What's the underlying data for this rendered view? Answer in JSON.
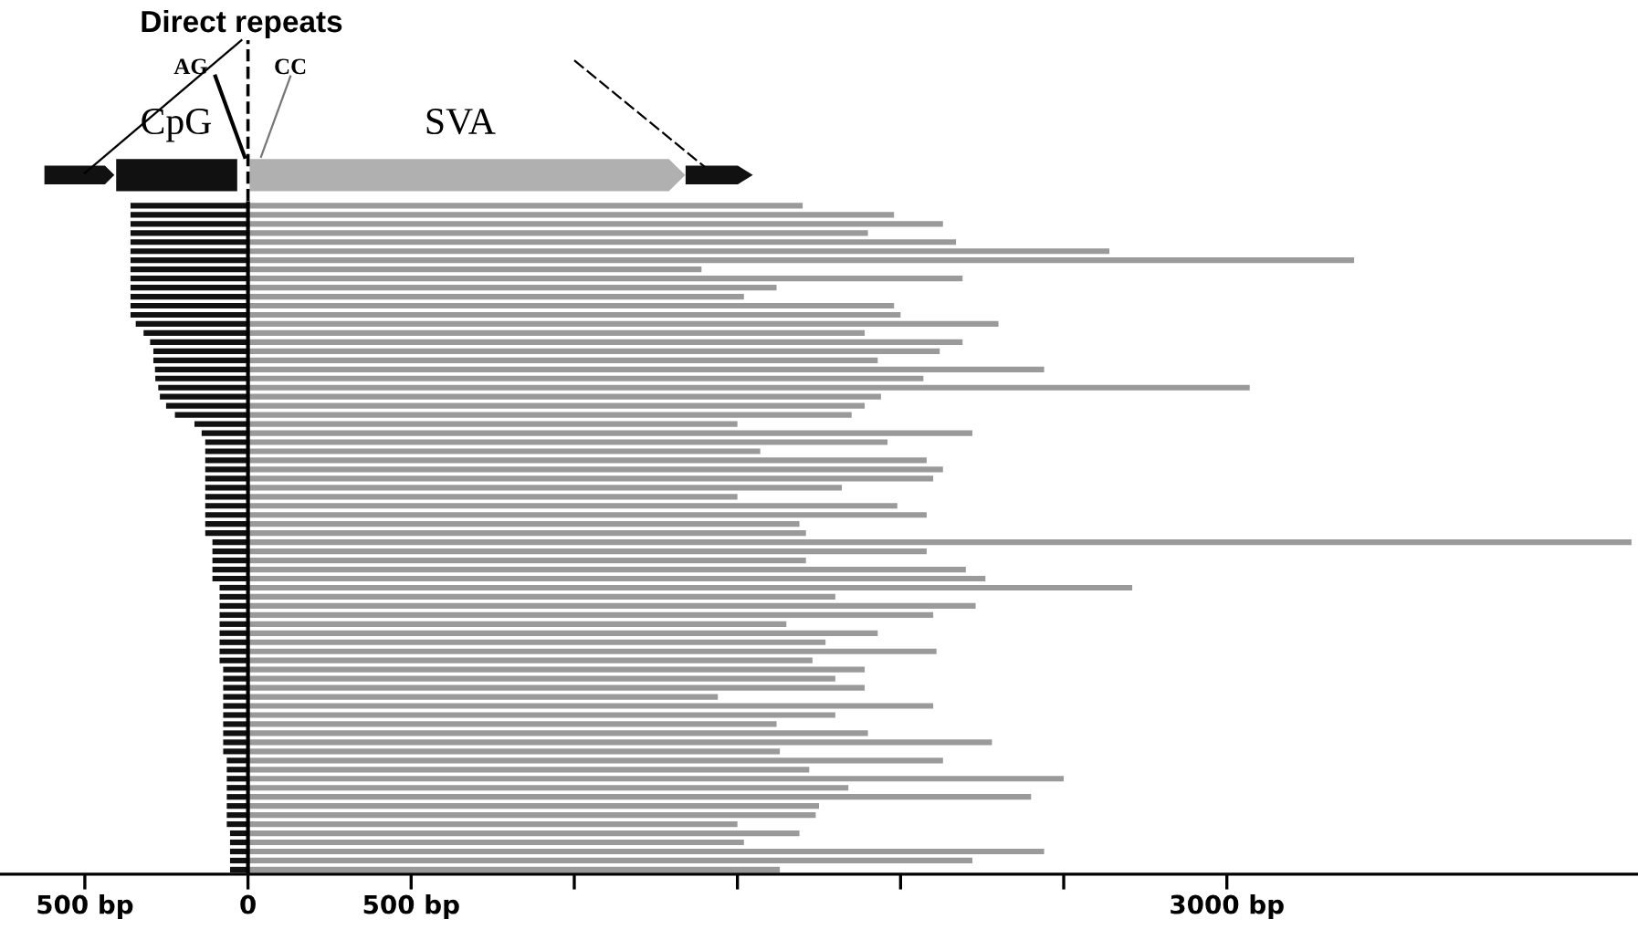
{
  "chart_data": {
    "type": "bar",
    "orientation": "horizontal",
    "stacked": true,
    "categories": [
      null,
      null,
      null,
      null,
      null,
      null,
      null,
      null,
      null,
      null,
      null,
      null,
      null,
      null,
      null,
      null,
      null,
      null,
      null,
      null,
      null,
      null,
      null,
      null,
      null,
      null,
      null,
      null,
      null,
      null,
      null,
      null,
      null,
      null,
      null,
      null,
      null,
      null,
      null,
      null,
      null,
      null,
      null,
      null,
      null,
      null,
      null,
      null,
      null,
      null,
      null,
      null,
      null,
      null,
      null,
      null,
      null,
      null,
      null,
      null,
      null,
      null,
      null,
      null,
      null,
      null,
      null,
      null,
      null,
      null,
      null,
      null,
      null,
      null
    ],
    "series": [
      {
        "color": "#111111",
        "values": [
          -360,
          -360,
          -360,
          -360,
          -360,
          -360,
          -360,
          -360,
          -360,
          -360,
          -360,
          -360,
          -360,
          -344,
          -320,
          -300,
          -290,
          -290,
          -285,
          -284,
          -275,
          -270,
          -251,
          -224,
          -164,
          -142,
          -131,
          -131,
          -131,
          -131,
          -131,
          -131,
          -131,
          -131,
          -131,
          -131,
          -131,
          -109,
          -109,
          -109,
          -109,
          -109,
          -87,
          -87,
          -87,
          -87,
          -87,
          -87,
          -87,
          -87,
          -87,
          -76,
          -76,
          -76,
          -76,
          -76,
          -76,
          -76,
          -76,
          -76,
          -76,
          -65,
          -65,
          -65,
          -65,
          -65,
          -65,
          -65,
          -65,
          -55,
          -55,
          -55,
          -55,
          -55
        ]
      },
      {
        "color": "#9a9a9a",
        "values": [
          1700,
          1980,
          2130,
          1900,
          2170,
          2640,
          3390,
          1390,
          2190,
          1620,
          1520,
          1980,
          2000,
          2300,
          1890,
          2190,
          2120,
          1930,
          2440,
          2070,
          3070,
          1940,
          1890,
          1850,
          1500,
          2220,
          1960,
          1570,
          2080,
          2130,
          2100,
          1820,
          1500,
          1990,
          2080,
          1690,
          1710,
          4240,
          2080,
          1710,
          2200,
          2260,
          2710,
          1800,
          2230,
          2100,
          1650,
          1930,
          1770,
          2110,
          1730,
          1890,
          1800,
          1890,
          1440,
          2100,
          1800,
          1620,
          1900,
          2280,
          1630,
          2130,
          1720,
          2500,
          1840,
          2400,
          1750,
          1740,
          1500,
          1690,
          1520,
          2440,
          2220,
          1630
        ]
      }
    ],
    "xlim": [
      -760,
      4260
    ],
    "xticks": [
      {
        "value": -500,
        "label": "500 bp"
      },
      0,
      {
        "value": 500,
        "label": "500 bp"
      },
      {
        "value": 1000,
        "label": null
      },
      {
        "value": 1500,
        "label": null
      },
      {
        "value": 2000,
        "label": null
      },
      {
        "value": 2500,
        "label": null
      },
      {
        "value": 3000,
        "label": "3000 bp"
      }
    ],
    "ref_lines": [
      {
        "axis": "x",
        "value": 0,
        "color": "#000000",
        "line_style": "solid"
      }
    ],
    "annotations": [
      "Direct repeats",
      "AG",
      "CC",
      "CpG",
      "SVA"
    ],
    "grid": false,
    "legend": false
  }
}
